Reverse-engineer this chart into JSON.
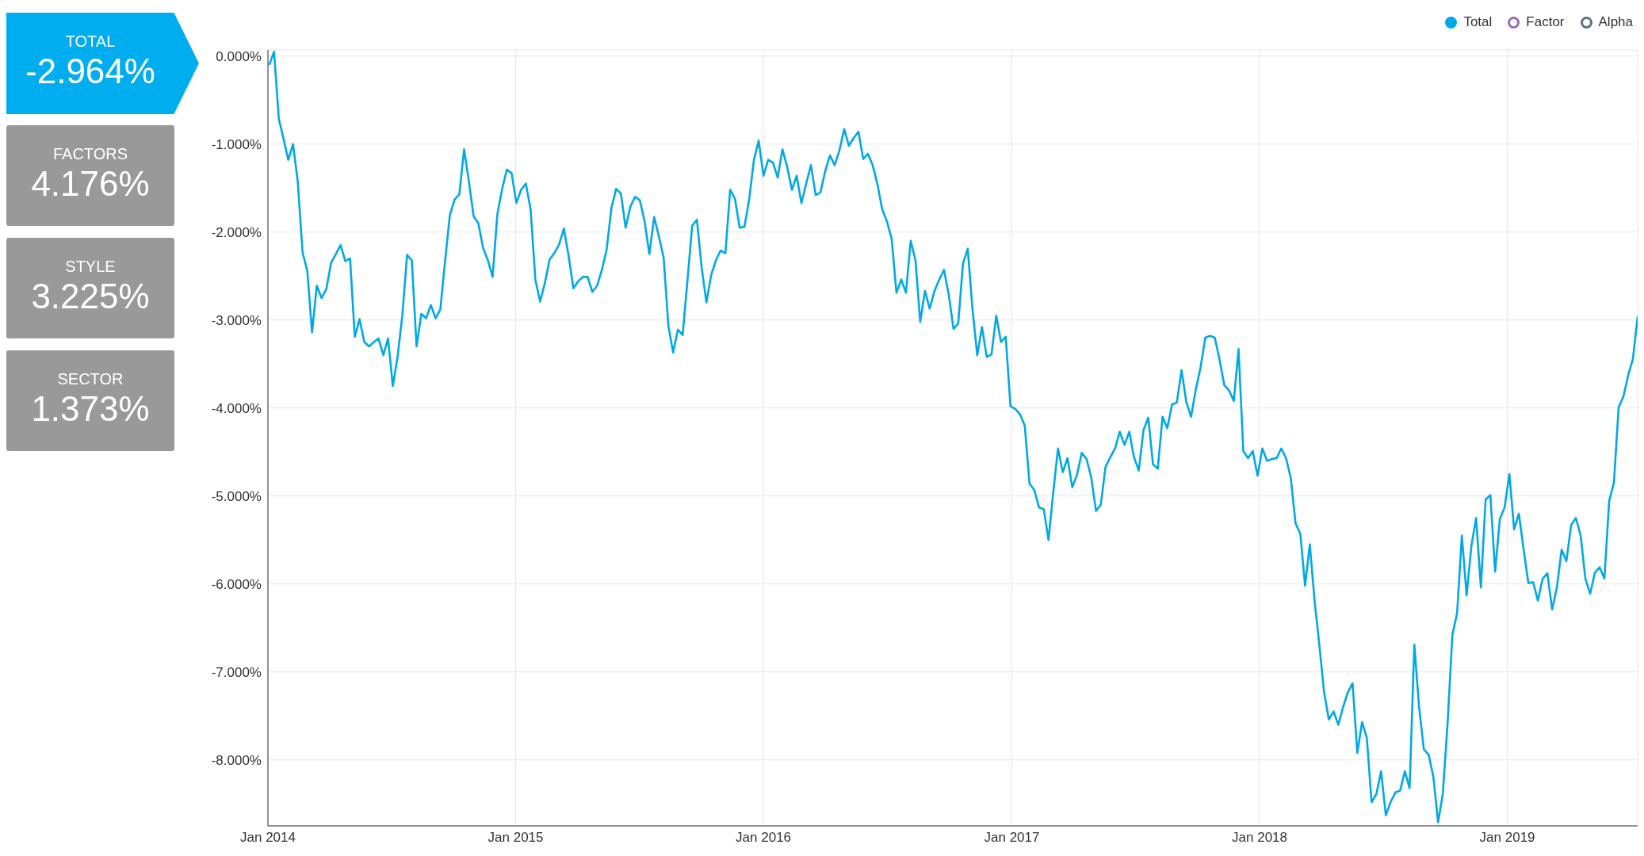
{
  "chart_data": [
    {
      "type": "other",
      "categories": [
        "TOTAL",
        "FACTORS",
        "STYLE",
        "SECTOR"
      ],
      "value_labels": [
        "-2.964%",
        "4.176%",
        "3.225%",
        "1.373%"
      ],
      "colors": [
        "#00aeef",
        "#999999",
        "#999999",
        "#999999"
      ]
    },
    {
      "type": "line",
      "legend": "top right",
      "grid": true,
      "line_style": "solid",
      "marker": "none",
      "x": [
        "2014-01-03",
        "2014-01-10",
        "2014-01-17",
        "2014-01-24",
        "2014-01-31",
        "2014-02-07",
        "2014-02-14",
        "2014-02-21",
        "2014-02-28",
        "2014-03-07",
        "2014-03-14",
        "2014-03-21",
        "2014-03-28",
        "2014-04-04",
        "2014-04-11",
        "2014-04-18",
        "2014-04-25",
        "2014-05-02",
        "2014-05-09",
        "2014-05-16",
        "2014-05-23",
        "2014-05-30",
        "2014-06-06",
        "2014-06-13",
        "2014-06-20",
        "2014-06-27",
        "2014-07-04",
        "2014-07-11",
        "2014-07-18",
        "2014-07-25",
        "2014-08-01",
        "2014-08-08",
        "2014-08-15",
        "2014-08-22",
        "2014-08-29",
        "2014-09-05",
        "2014-09-12",
        "2014-09-19",
        "2014-09-26",
        "2014-10-03",
        "2014-10-10",
        "2014-10-17",
        "2014-10-24",
        "2014-10-31",
        "2014-11-07",
        "2014-11-14",
        "2014-11-21",
        "2014-11-28",
        "2014-12-05",
        "2014-12-12",
        "2014-12-19",
        "2014-12-26",
        "2015-01-02",
        "2015-01-09",
        "2015-01-16",
        "2015-01-23",
        "2015-01-30",
        "2015-02-06",
        "2015-02-13",
        "2015-02-20",
        "2015-02-27",
        "2015-03-06",
        "2015-03-13",
        "2015-03-20",
        "2015-03-27",
        "2015-04-03",
        "2015-04-10",
        "2015-04-17",
        "2015-04-24",
        "2015-05-01",
        "2015-05-08",
        "2015-05-15",
        "2015-05-22",
        "2015-05-29",
        "2015-06-05",
        "2015-06-12",
        "2015-06-19",
        "2015-06-26",
        "2015-07-03",
        "2015-07-10",
        "2015-07-17",
        "2015-07-24",
        "2015-07-31",
        "2015-08-07",
        "2015-08-14",
        "2015-08-21",
        "2015-08-28",
        "2015-09-04",
        "2015-09-11",
        "2015-09-18",
        "2015-09-25",
        "2015-10-02",
        "2015-10-09",
        "2015-10-16",
        "2015-10-23",
        "2015-10-30",
        "2015-11-06",
        "2015-11-13",
        "2015-11-20",
        "2015-11-27",
        "2015-12-04",
        "2015-12-11",
        "2015-12-18",
        "2015-12-25",
        "2016-01-01",
        "2016-01-08",
        "2016-01-15",
        "2016-01-22",
        "2016-01-29",
        "2016-02-05",
        "2016-02-12",
        "2016-02-19",
        "2016-02-26",
        "2016-03-04",
        "2016-03-11",
        "2016-03-18",
        "2016-03-25",
        "2016-04-01",
        "2016-04-08",
        "2016-04-15",
        "2016-04-22",
        "2016-04-29",
        "2016-05-06",
        "2016-05-13",
        "2016-05-20",
        "2016-05-27",
        "2016-06-03",
        "2016-06-10",
        "2016-06-17",
        "2016-06-24",
        "2016-07-01",
        "2016-07-08",
        "2016-07-15",
        "2016-07-22",
        "2016-07-29",
        "2016-08-05",
        "2016-08-12",
        "2016-08-19",
        "2016-08-26",
        "2016-09-02",
        "2016-09-09",
        "2016-09-16",
        "2016-09-23",
        "2016-09-30",
        "2016-10-07",
        "2016-10-14",
        "2016-10-21",
        "2016-10-28",
        "2016-11-04",
        "2016-11-11",
        "2016-11-18",
        "2016-11-25",
        "2016-12-02",
        "2016-12-09",
        "2016-12-16",
        "2016-12-23",
        "2016-12-30",
        "2017-01-06",
        "2017-01-13",
        "2017-01-20",
        "2017-01-27",
        "2017-02-03",
        "2017-02-10",
        "2017-02-17",
        "2017-02-24",
        "2017-03-03",
        "2017-03-10",
        "2017-03-17",
        "2017-03-24",
        "2017-03-31",
        "2017-04-07",
        "2017-04-14",
        "2017-04-21",
        "2017-04-28",
        "2017-05-05",
        "2017-05-12",
        "2017-05-19",
        "2017-05-26",
        "2017-06-02",
        "2017-06-09",
        "2017-06-16",
        "2017-06-23",
        "2017-06-30",
        "2017-07-07",
        "2017-07-14",
        "2017-07-21",
        "2017-07-28",
        "2017-08-04",
        "2017-08-11",
        "2017-08-18",
        "2017-08-25",
        "2017-09-01",
        "2017-09-08",
        "2017-09-15",
        "2017-09-22",
        "2017-09-29",
        "2017-10-06",
        "2017-10-13",
        "2017-10-20",
        "2017-10-27",
        "2017-11-03",
        "2017-11-10",
        "2017-11-17",
        "2017-11-24",
        "2017-12-01",
        "2017-12-08",
        "2017-12-15",
        "2017-12-22",
        "2017-12-29",
        "2018-01-05",
        "2018-01-12",
        "2018-01-19",
        "2018-01-26",
        "2018-02-02",
        "2018-02-09",
        "2018-02-16",
        "2018-02-23",
        "2018-03-02",
        "2018-03-09",
        "2018-03-16",
        "2018-03-23",
        "2018-03-30",
        "2018-04-06",
        "2018-04-13",
        "2018-04-20",
        "2018-04-27",
        "2018-05-04",
        "2018-05-11",
        "2018-05-18",
        "2018-05-25",
        "2018-06-01",
        "2018-06-08",
        "2018-06-15",
        "2018-06-22",
        "2018-06-29",
        "2018-07-06",
        "2018-07-13",
        "2018-07-20",
        "2018-07-27",
        "2018-08-03",
        "2018-08-10",
        "2018-08-17",
        "2018-08-24",
        "2018-08-31",
        "2018-09-07",
        "2018-09-14",
        "2018-09-21",
        "2018-09-28",
        "2018-10-05",
        "2018-10-12",
        "2018-10-19",
        "2018-10-26",
        "2018-11-02",
        "2018-11-09",
        "2018-11-16",
        "2018-11-23",
        "2018-11-30",
        "2018-12-07",
        "2018-12-14",
        "2018-12-21",
        "2018-12-28",
        "2019-01-04",
        "2019-01-11",
        "2019-01-18",
        "2019-01-25",
        "2019-02-01",
        "2019-02-08",
        "2019-02-15",
        "2019-02-22",
        "2019-03-01",
        "2019-03-08",
        "2019-03-15",
        "2019-03-22",
        "2019-03-29",
        "2019-04-05",
        "2019-04-12",
        "2019-04-19",
        "2019-04-26",
        "2019-05-03",
        "2019-05-10",
        "2019-05-17",
        "2019-05-24",
        "2019-05-31",
        "2019-06-07",
        "2019-06-14",
        "2019-06-21",
        "2019-06-28",
        "2019-07-05",
        "2019-07-12"
      ],
      "series": [
        {
          "name": "Total",
          "color": "#00a9e6",
          "values": [
            -0.1,
            0.05,
            -0.71,
            -0.94,
            -1.18,
            -1.0,
            -1.43,
            -2.23,
            -2.44,
            -3.14,
            -2.61,
            -2.75,
            -2.65,
            -2.35,
            -2.25,
            -2.15,
            -2.33,
            -2.3,
            -3.19,
            -2.99,
            -3.25,
            -3.3,
            -3.25,
            -3.21,
            -3.4,
            -3.21,
            -3.75,
            -3.42,
            -2.95,
            -2.26,
            -2.32,
            -3.3,
            -2.93,
            -2.98,
            -2.83,
            -2.98,
            -2.88,
            -2.33,
            -1.81,
            -1.63,
            -1.57,
            -1.06,
            -1.42,
            -1.82,
            -1.9,
            -2.18,
            -2.32,
            -2.51,
            -1.8,
            -1.51,
            -1.29,
            -1.33,
            -1.67,
            -1.52,
            -1.45,
            -1.74,
            -2.54,
            -2.79,
            -2.58,
            -2.31,
            -2.24,
            -2.14,
            -1.96,
            -2.27,
            -2.64,
            -2.56,
            -2.51,
            -2.51,
            -2.68,
            -2.61,
            -2.43,
            -2.2,
            -1.73,
            -1.51,
            -1.56,
            -1.95,
            -1.71,
            -1.6,
            -1.64,
            -1.88,
            -2.25,
            -1.83,
            -2.05,
            -2.29,
            -3.07,
            -3.37,
            -3.11,
            -3.17,
            -2.56,
            -1.93,
            -1.86,
            -2.4,
            -2.8,
            -2.49,
            -2.32,
            -2.21,
            -2.24,
            -1.52,
            -1.62,
            -1.95,
            -1.94,
            -1.63,
            -1.18,
            -0.96,
            -1.36,
            -1.18,
            -1.21,
            -1.38,
            -1.06,
            -1.26,
            -1.52,
            -1.36,
            -1.67,
            -1.45,
            -1.24,
            -1.58,
            -1.55,
            -1.31,
            -1.13,
            -1.24,
            -1.07,
            -0.83,
            -1.02,
            -0.93,
            -0.86,
            -1.17,
            -1.11,
            -1.24,
            -1.46,
            -1.74,
            -1.88,
            -2.08,
            -2.69,
            -2.54,
            -2.69,
            -2.1,
            -2.32,
            -3.02,
            -2.67,
            -2.87,
            -2.67,
            -2.54,
            -2.43,
            -2.71,
            -3.1,
            -3.04,
            -2.36,
            -2.19,
            -2.87,
            -3.4,
            -3.08,
            -3.42,
            -3.39,
            -2.95,
            -3.25,
            -3.19,
            -3.98,
            -4.01,
            -4.07,
            -4.2,
            -4.86,
            -4.93,
            -5.13,
            -5.15,
            -5.5,
            -4.96,
            -4.46,
            -4.73,
            -4.57,
            -4.9,
            -4.76,
            -4.51,
            -4.58,
            -4.79,
            -5.17,
            -5.1,
            -4.67,
            -4.56,
            -4.46,
            -4.27,
            -4.42,
            -4.27,
            -4.56,
            -4.71,
            -4.25,
            -4.11,
            -4.64,
            -4.69,
            -4.1,
            -4.23,
            -3.96,
            -3.94,
            -3.57,
            -3.93,
            -4.1,
            -3.79,
            -3.54,
            -3.2,
            -3.18,
            -3.2,
            -3.45,
            -3.74,
            -3.8,
            -3.92,
            -3.33,
            -4.49,
            -4.57,
            -4.49,
            -4.77,
            -4.46,
            -4.6,
            -4.58,
            -4.57,
            -4.46,
            -4.57,
            -4.8,
            -5.31,
            -5.43,
            -6.02,
            -5.55,
            -6.19,
            -6.69,
            -7.23,
            -7.54,
            -7.45,
            -7.6,
            -7.4,
            -7.23,
            -7.13,
            -7.92,
            -7.57,
            -7.75,
            -8.48,
            -8.39,
            -8.13,
            -8.63,
            -8.48,
            -8.37,
            -8.35,
            -8.13,
            -8.32,
            -6.69,
            -7.4,
            -7.88,
            -7.94,
            -8.19,
            -8.71,
            -8.38,
            -7.58,
            -6.58,
            -6.33,
            -5.45,
            -6.13,
            -5.57,
            -5.25,
            -6.04,
            -5.04,
            -4.99,
            -5.86,
            -5.26,
            -5.13,
            -4.75,
            -5.38,
            -5.2,
            -5.61,
            -5.99,
            -5.98,
            -6.19,
            -5.94,
            -5.88,
            -6.29,
            -6.04,
            -5.61,
            -5.74,
            -5.33,
            -5.25,
            -5.45,
            -5.94,
            -6.11,
            -5.87,
            -5.81,
            -5.94,
            -5.06,
            -4.85,
            -3.99,
            -3.87,
            -3.63,
            -3.44,
            -2.96
          ]
        },
        {
          "name": "Factor",
          "color": "#9b6bb5",
          "values": [
            null,
            null,
            null,
            null,
            null,
            null,
            null,
            null,
            null,
            null,
            null,
            null,
            null,
            null,
            null,
            null,
            null,
            null,
            null,
            null,
            null,
            null,
            null,
            null,
            null,
            null,
            null,
            null,
            null,
            null,
            null,
            null,
            null,
            null,
            null,
            null,
            null,
            null,
            null,
            null,
            null,
            null,
            null,
            null,
            null,
            null,
            null,
            null,
            null,
            null,
            null,
            null,
            null,
            null,
            null,
            null,
            null,
            null,
            null,
            null,
            null,
            null,
            null,
            null,
            null,
            null,
            null,
            null,
            null,
            null,
            null,
            null,
            null,
            null,
            null,
            null,
            null,
            null,
            null,
            null,
            null,
            null,
            null,
            null,
            null,
            null,
            null,
            null,
            null,
            null,
            null,
            null,
            null,
            null,
            null,
            null,
            null,
            null,
            null,
            null,
            null,
            null,
            null,
            null,
            null,
            null,
            null,
            null,
            null,
            null,
            null,
            null,
            null,
            null,
            null,
            null,
            null,
            null,
            null,
            null,
            null,
            null,
            null,
            null,
            null,
            null,
            null,
            null,
            null,
            null,
            null,
            null,
            null,
            null,
            null,
            null,
            null,
            null,
            null,
            null,
            null,
            null,
            null,
            null,
            null,
            null,
            null,
            null,
            null,
            null,
            null,
            null,
            null,
            null,
            null,
            null,
            null,
            null,
            null,
            null,
            null,
            null,
            null,
            null,
            null,
            null,
            null,
            null,
            null,
            null,
            null,
            null,
            null,
            null,
            null,
            null,
            null,
            null,
            null,
            null,
            null,
            null,
            null,
            null,
            null,
            null,
            null,
            null,
            null,
            null,
            null,
            null,
            null,
            null,
            null,
            null,
            null,
            null,
            null,
            null,
            null,
            null,
            null,
            null,
            null,
            null,
            null,
            null,
            null,
            null,
            null,
            null,
            null,
            null,
            null,
            null,
            null,
            null,
            null,
            null,
            null,
            null,
            null,
            null,
            null,
            null,
            null,
            null,
            null,
            null,
            null,
            null,
            null,
            null,
            null,
            null,
            null,
            null,
            null,
            null,
            null,
            null,
            null,
            null,
            null,
            null,
            null,
            null,
            null,
            null,
            null,
            null,
            null,
            null,
            null,
            null,
            null,
            null,
            null,
            null,
            null,
            null,
            null,
            null,
            null,
            null,
            null,
            null,
            null,
            null,
            null,
            null,
            null,
            null,
            null,
            null,
            null,
            null,
            null,
            null,
            null,
            null,
            null,
            null,
            null,
            null,
            null,
            null,
            null
          ]
        },
        {
          "name": "Alpha",
          "color": "#5f7282",
          "values": [
            null,
            null,
            null,
            null,
            null,
            null,
            null,
            null,
            null,
            null,
            null,
            null,
            null,
            null,
            null,
            null,
            null,
            null,
            null,
            null,
            null,
            null,
            null,
            null,
            null,
            null,
            null,
            null,
            null,
            null,
            null,
            null,
            null,
            null,
            null,
            null,
            null,
            null,
            null,
            null,
            null,
            null,
            null,
            null,
            null,
            null,
            null,
            null,
            null,
            null,
            null,
            null,
            null,
            null,
            null,
            null,
            null,
            null,
            null,
            null,
            null,
            null,
            null,
            null,
            null,
            null,
            null,
            null,
            null,
            null,
            null,
            null,
            null,
            null,
            null,
            null,
            null,
            null,
            null,
            null,
            null,
            null,
            null,
            null,
            null,
            null,
            null,
            null,
            null,
            null,
            null,
            null,
            null,
            null,
            null,
            null,
            null,
            null,
            null,
            null,
            null,
            null,
            null,
            null,
            null,
            null,
            null,
            null,
            null,
            null,
            null,
            null,
            null,
            null,
            null,
            null,
            null,
            null,
            null,
            null,
            null,
            null,
            null,
            null,
            null,
            null,
            null,
            null,
            null,
            null,
            null,
            null,
            null,
            null,
            null,
            null,
            null,
            null,
            null,
            null,
            null,
            null,
            null,
            null,
            null,
            null,
            null,
            null,
            null,
            null,
            null,
            null,
            null,
            null,
            null,
            null,
            null,
            null,
            null,
            null,
            null,
            null,
            null,
            null,
            null,
            null,
            null,
            null,
            null,
            null,
            null,
            null,
            null,
            null,
            null,
            null,
            null,
            null,
            null,
            null,
            null,
            null,
            null,
            null,
            null,
            null,
            null,
            null,
            null,
            null,
            null,
            null,
            null,
            null,
            null,
            null,
            null,
            null,
            null,
            null,
            null,
            null,
            null,
            null,
            null,
            null,
            null,
            null,
            null,
            null,
            null,
            null,
            null,
            null,
            null,
            null,
            null,
            null,
            null,
            null,
            null,
            null,
            null,
            null,
            null,
            null,
            null,
            null,
            null,
            null,
            null,
            null,
            null,
            null,
            null,
            null,
            null,
            null,
            null,
            null,
            null,
            null,
            null,
            null,
            null,
            null,
            null,
            null,
            null,
            null,
            null,
            null,
            null,
            null,
            null,
            null,
            null,
            null,
            null,
            null,
            null,
            null,
            null,
            null,
            null,
            null,
            null,
            null,
            null,
            null,
            null,
            null,
            null,
            null,
            null,
            null,
            null,
            null,
            null,
            null,
            null,
            null,
            null,
            null,
            null,
            null,
            null,
            null,
            null
          ]
        }
      ],
      "xlim": [
        "2014-01-01",
        "2019-07-12"
      ],
      "xticks": [
        {
          "value": "2014-01-01",
          "label": "Jan 2014"
        },
        {
          "value": "2015-01-01",
          "label": "Jan 2015"
        },
        {
          "value": "2016-01-01",
          "label": "Jan 2016"
        },
        {
          "value": "2017-01-01",
          "label": "Jan 2017"
        },
        {
          "value": "2018-01-01",
          "label": "Jan 2018"
        },
        {
          "value": "2019-01-01",
          "label": "Jan 2019"
        }
      ],
      "ylim": [
        -8.75,
        0.07
      ],
      "yticks": [
        {
          "value": 0,
          "label": "0.000%"
        },
        {
          "value": -1,
          "label": "-1.000%"
        },
        {
          "value": -2,
          "label": "-2.000%"
        },
        {
          "value": -3,
          "label": "-3.000%"
        },
        {
          "value": -4,
          "label": "-4.000%"
        },
        {
          "value": -5,
          "label": "-5.000%"
        },
        {
          "value": -6,
          "label": "-6.000%"
        },
        {
          "value": -7,
          "label": "-7.000%"
        },
        {
          "value": -8,
          "label": "-8.000%"
        }
      ]
    }
  ]
}
